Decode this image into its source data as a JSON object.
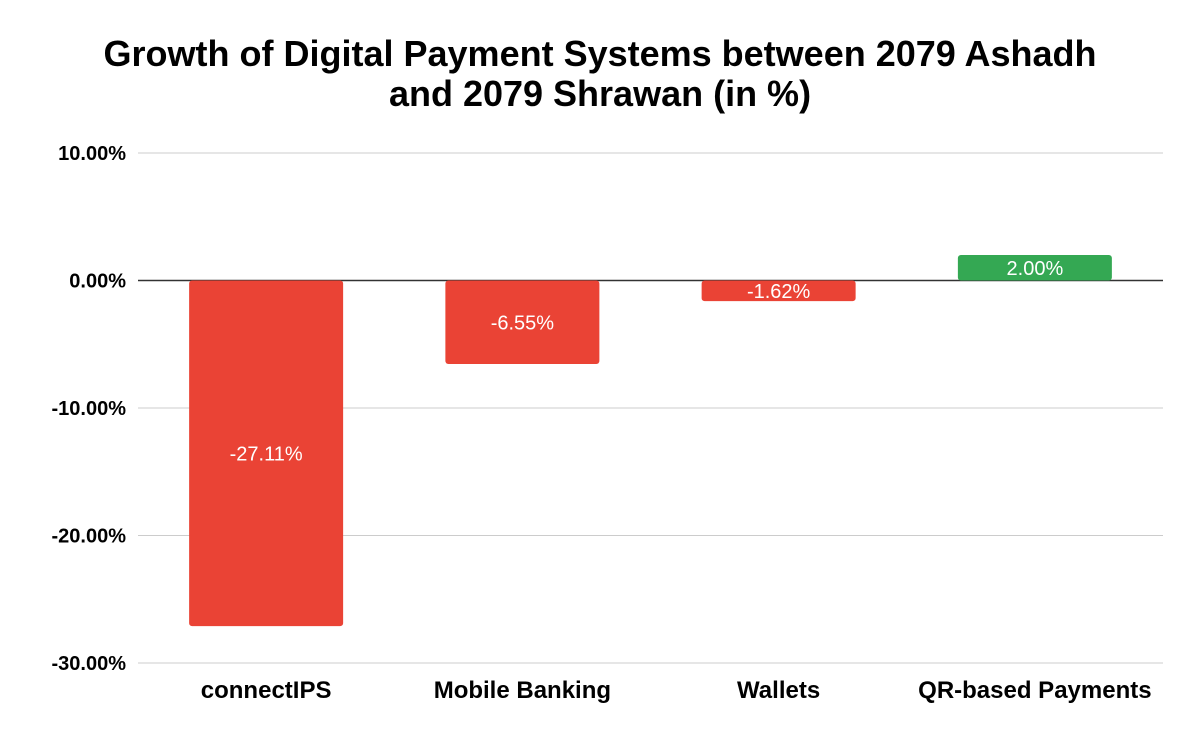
{
  "chart_data": {
    "type": "bar",
    "title_lines": [
      "Growth of Digital Payment Systems between 2079 Ashadh",
      "and 2079 Shrawan (in %)"
    ],
    "categories": [
      "connectIPS",
      "Mobile Banking",
      "Wallets",
      "QR-based Payments"
    ],
    "values": [
      -27.11,
      -6.55,
      -1.62,
      2.0
    ],
    "value_labels": [
      "-27.11%",
      "-6.55%",
      "-1.62%",
      "2.00%"
    ],
    "bar_colors": [
      "#EA4335",
      "#EA4335",
      "#EA4335",
      "#34A853"
    ],
    "y_ticks": [
      10,
      0,
      -10,
      -20,
      -30
    ],
    "y_tick_labels": [
      "10.00%",
      "0.00%",
      "-10.00%",
      "-20.00%",
      "-30.00%"
    ],
    "ylim": [
      -30,
      10
    ],
    "xlabel": "",
    "ylabel": "",
    "grid": true,
    "legend": "none",
    "colors": {
      "negative": "#EA4335",
      "positive": "#34A853",
      "grid": "#cccccc",
      "zero_line": "#333333"
    }
  }
}
